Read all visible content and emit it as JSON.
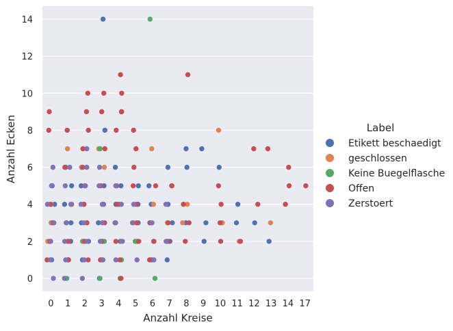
{
  "chart_data": {
    "type": "scatter",
    "style": "seaborn stripplot with horizontal jitter, darkgrid",
    "xlabel": "Anzahl Kreise",
    "ylabel": "Anzahl Ecken",
    "x_categories": [
      "0",
      "1",
      "2",
      "3",
      "4",
      "5",
      "6",
      "7",
      "8",
      "9",
      "10",
      "11",
      "12",
      "13",
      "14",
      "17"
    ],
    "yticks": [
      0,
      2,
      4,
      6,
      8,
      10,
      12,
      14
    ],
    "ylim": [
      -0.7,
      14.7
    ],
    "grid": true,
    "legend": {
      "title": "Label",
      "placement": "right",
      "entries": [
        {
          "label": "Etikett beschaedigt",
          "color": "#4c72b0"
        },
        {
          "label": "geschlossen",
          "color": "#dd8452"
        },
        {
          "label": "Keine Buegelflasche",
          "color": "#55a868"
        },
        {
          "label": "Offen",
          "color": "#c44e52"
        },
        {
          "label": "Zerstoert",
          "color": "#8172b3"
        }
      ]
    },
    "series": [
      {
        "name": "Etikett beschaedigt",
        "color": "#4c72b0",
        "points": [
          [
            "0",
            1
          ],
          [
            "0",
            2
          ],
          [
            "0",
            3
          ],
          [
            "0",
            4
          ],
          [
            "0",
            5
          ],
          [
            "1",
            1
          ],
          [
            "1",
            2
          ],
          [
            "1",
            3
          ],
          [
            "1",
            4
          ],
          [
            "1",
            5
          ],
          [
            "1",
            6
          ],
          [
            "2",
            1
          ],
          [
            "2",
            2
          ],
          [
            "2",
            3
          ],
          [
            "2",
            4
          ],
          [
            "2",
            5
          ],
          [
            "2",
            6
          ],
          [
            "3",
            14
          ],
          [
            "3",
            8
          ],
          [
            "3",
            5
          ],
          [
            "3",
            4
          ],
          [
            "3",
            3
          ],
          [
            "3",
            2
          ],
          [
            "3",
            1
          ],
          [
            "3",
            0
          ],
          [
            "4",
            9
          ],
          [
            "4",
            6
          ],
          [
            "4",
            5
          ],
          [
            "4",
            4
          ],
          [
            "4",
            3
          ],
          [
            "4",
            2
          ],
          [
            "4",
            0
          ],
          [
            "5",
            5
          ],
          [
            "5",
            4
          ],
          [
            "5",
            3
          ],
          [
            "5",
            2
          ],
          [
            "6",
            5
          ],
          [
            "6",
            4
          ],
          [
            "6",
            3
          ],
          [
            "6",
            2
          ],
          [
            "6",
            1
          ],
          [
            "7",
            6
          ],
          [
            "7",
            5
          ],
          [
            "7",
            4
          ],
          [
            "7",
            3
          ],
          [
            "7",
            2
          ],
          [
            "7",
            1
          ],
          [
            "8",
            7
          ],
          [
            "8",
            6
          ],
          [
            "8",
            3
          ],
          [
            "9",
            7
          ],
          [
            "9",
            3
          ],
          [
            "9",
            2
          ],
          [
            "10",
            6
          ],
          [
            "10",
            3
          ],
          [
            "11",
            4
          ],
          [
            "11",
            3
          ],
          [
            "12",
            3
          ],
          [
            "13",
            2
          ]
        ]
      },
      {
        "name": "geschlossen",
        "color": "#dd8452",
        "points": [
          [
            "0",
            2
          ],
          [
            "0",
            3
          ],
          [
            "0",
            4
          ],
          [
            "1",
            7
          ],
          [
            "1",
            3
          ],
          [
            "1",
            2
          ],
          [
            "2",
            6
          ],
          [
            "2",
            3
          ],
          [
            "2",
            2
          ],
          [
            "3",
            7
          ],
          [
            "3",
            6
          ],
          [
            "3",
            3
          ],
          [
            "4",
            4
          ],
          [
            "4",
            2
          ],
          [
            "5",
            3
          ],
          [
            "5",
            2
          ],
          [
            "6",
            7
          ],
          [
            "6",
            4
          ],
          [
            "6",
            2
          ],
          [
            "7",
            3
          ],
          [
            "7",
            2
          ],
          [
            "8",
            4
          ],
          [
            "8",
            3
          ],
          [
            "10",
            8
          ],
          [
            "10",
            3
          ],
          [
            "11",
            2
          ],
          [
            "13",
            3
          ]
        ]
      },
      {
        "name": "Keine Buegelflasche",
        "color": "#55a868",
        "points": [
          [
            "1",
            0
          ],
          [
            "1",
            1
          ],
          [
            "2",
            2
          ],
          [
            "3",
            7
          ],
          [
            "3",
            2
          ],
          [
            "3",
            0
          ],
          [
            "4",
            4
          ],
          [
            "4",
            3
          ],
          [
            "4",
            1
          ],
          [
            "4",
            0
          ],
          [
            "5",
            2
          ],
          [
            "6",
            14
          ],
          [
            "6",
            0
          ]
        ]
      },
      {
        "name": "Offen",
        "color": "#c44e52",
        "points": [
          [
            "0",
            9
          ],
          [
            "0",
            8
          ],
          [
            "0",
            4
          ],
          [
            "0",
            3
          ],
          [
            "0",
            2
          ],
          [
            "0",
            1
          ],
          [
            "1",
            8
          ],
          [
            "1",
            6
          ],
          [
            "1",
            4
          ],
          [
            "1",
            3
          ],
          [
            "1",
            2
          ],
          [
            "1",
            1
          ],
          [
            "2",
            10
          ],
          [
            "2",
            9
          ],
          [
            "2",
            8
          ],
          [
            "2",
            7
          ],
          [
            "2",
            6
          ],
          [
            "2",
            5
          ],
          [
            "2",
            4
          ],
          [
            "2",
            3
          ],
          [
            "2",
            2
          ],
          [
            "2",
            1
          ],
          [
            "3",
            10
          ],
          [
            "3",
            9
          ],
          [
            "3",
            7
          ],
          [
            "3",
            5
          ],
          [
            "3",
            4
          ],
          [
            "3",
            3
          ],
          [
            "3",
            2
          ],
          [
            "3",
            1
          ],
          [
            "4",
            11
          ],
          [
            "4",
            10
          ],
          [
            "4",
            9
          ],
          [
            "4",
            8
          ],
          [
            "4",
            5
          ],
          [
            "4",
            4
          ],
          [
            "4",
            3
          ],
          [
            "4",
            2
          ],
          [
            "4",
            1
          ],
          [
            "4",
            0
          ],
          [
            "5",
            8
          ],
          [
            "5",
            7
          ],
          [
            "5",
            6
          ],
          [
            "5",
            5
          ],
          [
            "5",
            4
          ],
          [
            "5",
            3
          ],
          [
            "5",
            2
          ],
          [
            "6",
            5
          ],
          [
            "6",
            3
          ],
          [
            "6",
            2
          ],
          [
            "6",
            1
          ],
          [
            "7",
            5
          ],
          [
            "7",
            3
          ],
          [
            "7",
            2
          ],
          [
            "8",
            11
          ],
          [
            "8",
            4
          ],
          [
            "8",
            3
          ],
          [
            "8",
            2
          ],
          [
            "10",
            5
          ],
          [
            "10",
            4
          ],
          [
            "10",
            3
          ],
          [
            "10",
            2
          ],
          [
            "11",
            2
          ],
          [
            "12",
            7
          ],
          [
            "12",
            4
          ],
          [
            "13",
            7
          ],
          [
            "14",
            6
          ],
          [
            "14",
            5
          ],
          [
            "14",
            4
          ],
          [
            "17",
            5
          ]
        ]
      },
      {
        "name": "Zerstoert",
        "color": "#8172b3",
        "points": [
          [
            "0",
            6
          ],
          [
            "0",
            5
          ],
          [
            "0",
            4
          ],
          [
            "0",
            3
          ],
          [
            "0",
            2
          ],
          [
            "0",
            1
          ],
          [
            "0",
            0
          ],
          [
            "1",
            6
          ],
          [
            "1",
            5
          ],
          [
            "1",
            4
          ],
          [
            "1",
            3
          ],
          [
            "1",
            2
          ],
          [
            "1",
            1
          ],
          [
            "1",
            0
          ],
          [
            "2",
            7
          ],
          [
            "2",
            6
          ],
          [
            "2",
            5
          ],
          [
            "2",
            4
          ],
          [
            "2",
            3
          ],
          [
            "2",
            2
          ],
          [
            "2",
            1
          ],
          [
            "2",
            0
          ],
          [
            "3",
            6
          ],
          [
            "3",
            5
          ],
          [
            "3",
            4
          ],
          [
            "3",
            3
          ],
          [
            "3",
            2
          ],
          [
            "3",
            1
          ],
          [
            "4",
            5
          ],
          [
            "4",
            4
          ],
          [
            "4",
            3
          ],
          [
            "4",
            2
          ],
          [
            "4",
            1
          ],
          [
            "5",
            4
          ],
          [
            "5",
            3
          ],
          [
            "5",
            1
          ],
          [
            "6",
            3
          ],
          [
            "6",
            1
          ],
          [
            "7",
            4
          ],
          [
            "7",
            2
          ]
        ]
      }
    ]
  }
}
